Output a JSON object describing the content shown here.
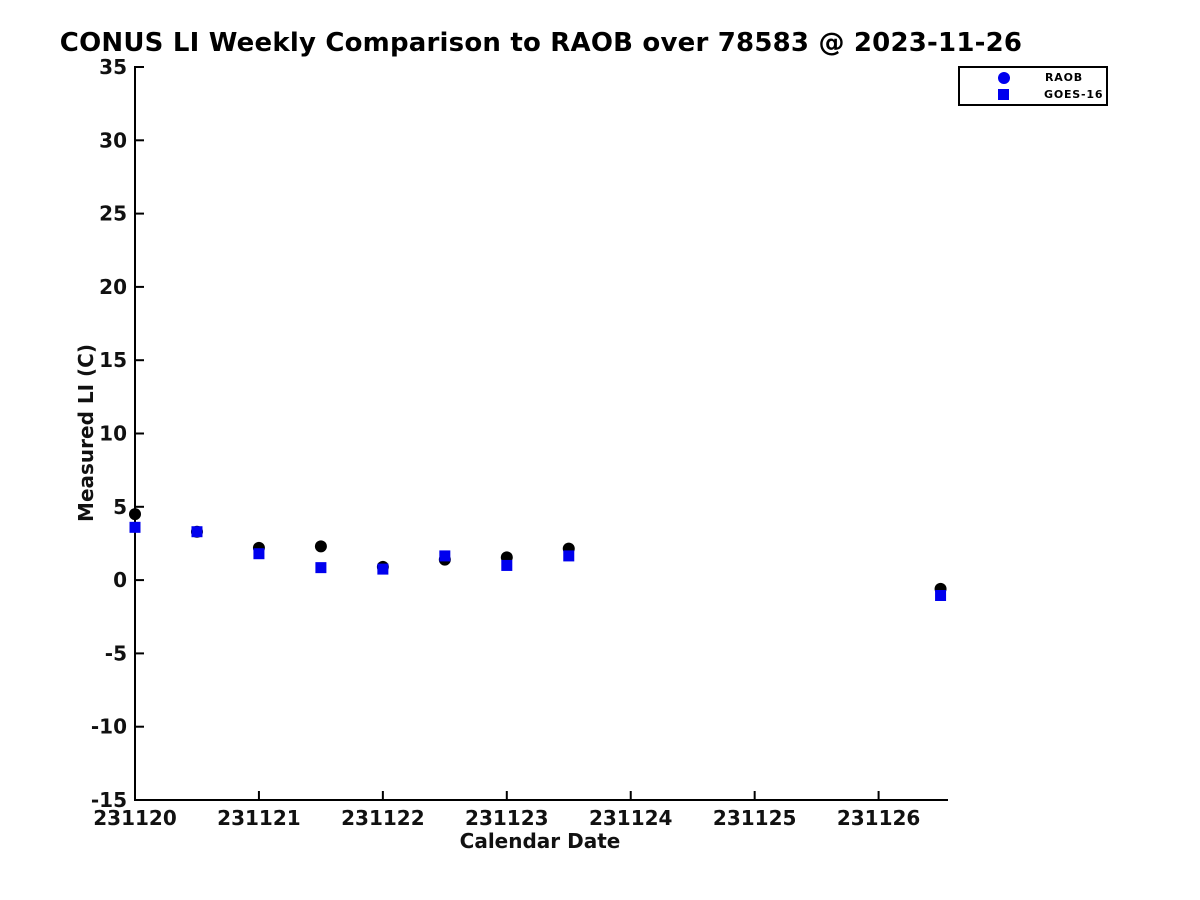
{
  "chart_data": {
    "type": "scatter",
    "title": "CONUS LI Weekly Comparison to RAOB over 78583 @ 2023-11-26",
    "xlabel": "Calendar Date",
    "ylabel": "Measured LI (C)",
    "xlim": [
      231120,
      231126.56
    ],
    "ylim": [
      -15,
      35
    ],
    "xtick_values": [
      231120,
      231121,
      231122,
      231123,
      231124,
      231125,
      231126
    ],
    "xtick_labels": [
      "231120",
      "231121",
      "231122",
      "231123",
      "231124",
      "231125",
      "231126"
    ],
    "ytick_values": [
      -15,
      -10,
      -5,
      0,
      5,
      10,
      15,
      20,
      25,
      30,
      35
    ],
    "ytick_labels": [
      "-15",
      "-10",
      "-5",
      "0",
      "5",
      "10",
      "15",
      "20",
      "25",
      "30",
      "35"
    ],
    "grid": false,
    "axis_color": "#000000",
    "legend": {
      "position": "top-right",
      "entries": [
        {
          "label": "RAOB",
          "marker": "circle",
          "color": "#0000ee"
        },
        {
          "label": "GOES-16",
          "marker": "square",
          "color": "#0000ee"
        }
      ]
    },
    "series": [
      {
        "name": "RAOB",
        "marker": "circle",
        "color": "#000000",
        "x": [
          231120,
          231120.5,
          231121,
          231121.5,
          231122,
          231122.5,
          231123,
          231123.5,
          231126.5
        ],
        "y": [
          4.5,
          3.3,
          2.2,
          2.3,
          0.9,
          1.4,
          1.55,
          2.15,
          -0.6
        ]
      },
      {
        "name": "GOES-16",
        "marker": "square",
        "color": "#0000ee",
        "x": [
          231120,
          231120.5,
          231121,
          231121.5,
          231122,
          231122.5,
          231123,
          231123.5,
          231126.5
        ],
        "y": [
          3.6,
          3.3,
          1.8,
          0.85,
          0.75,
          1.65,
          1.0,
          1.65,
          -1.05
        ]
      }
    ]
  }
}
